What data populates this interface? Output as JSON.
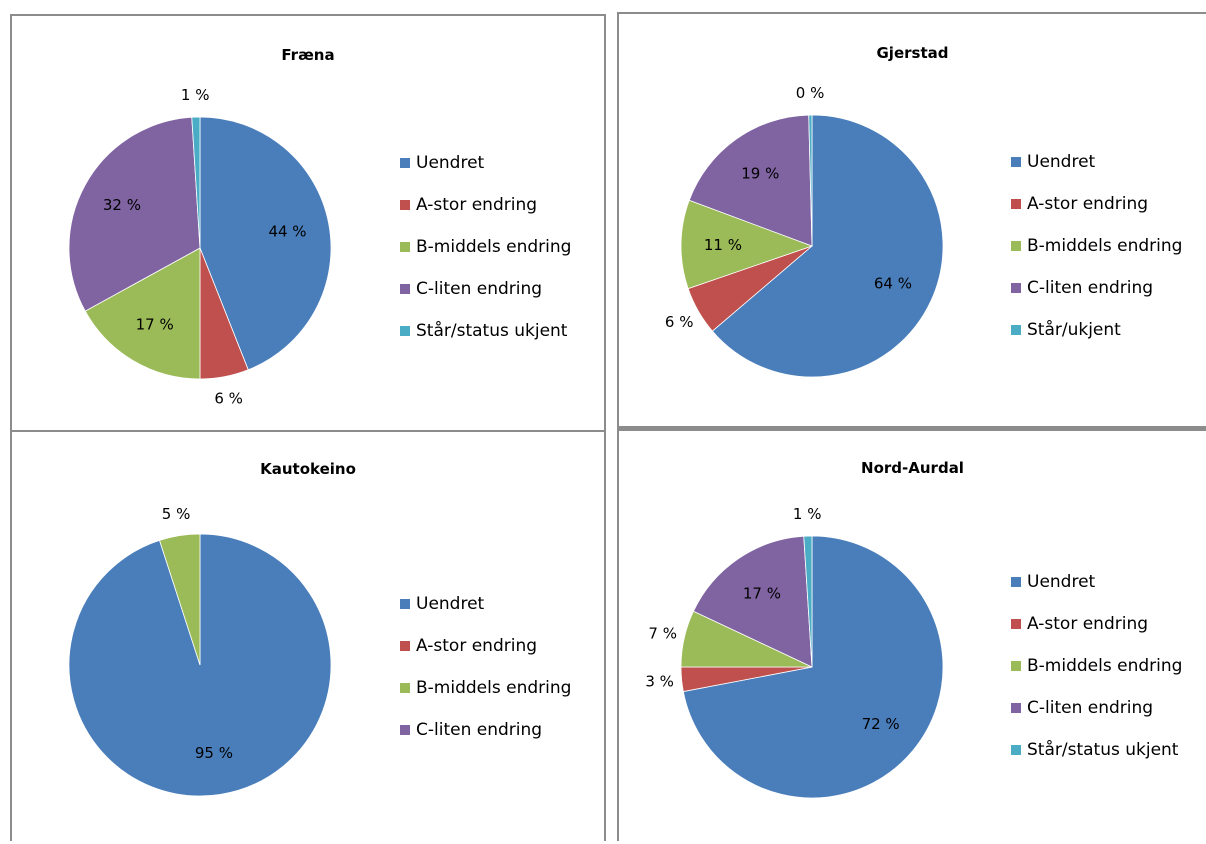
{
  "colors": {
    "Uendret": "#4a7ebb",
    "A-stor endring": "#c0504d",
    "B-middels endring": "#9bbb59",
    "C-liten endring": "#8064a2",
    "Status ukjent": "#4bacc6"
  },
  "chart_data": [
    {
      "type": "pie",
      "title": "Fræna",
      "categories": [
        "Uendret",
        "A-stor endring",
        "B-middels endring",
        "C-liten endring",
        "Står/status ukjent"
      ],
      "values": [
        44,
        6,
        17,
        32,
        1
      ],
      "labels": [
        "44 %",
        "6 %",
        "17 %",
        "32 %",
        "1 %"
      ],
      "legend_position": "right"
    },
    {
      "type": "pie",
      "title": "Gjerstad",
      "categories": [
        "Uendret",
        "A-stor endring",
        "B-middels endring",
        "C-liten endring",
        "Står/ukjent"
      ],
      "values": [
        64,
        6,
        11,
        19,
        0.4
      ],
      "labels": [
        "64 %",
        "6 %",
        "11 %",
        "19 %",
        "0 %"
      ],
      "legend_position": "right"
    },
    {
      "type": "pie",
      "title": "Kautokeino",
      "categories": [
        "Uendret",
        "A-stor endring",
        "B-middels endring",
        "C-liten endring"
      ],
      "values": [
        95,
        0,
        5,
        0
      ],
      "labels": [
        "95 %",
        "",
        "5 %",
        ""
      ],
      "legend_position": "right"
    },
    {
      "type": "pie",
      "title": "Nord-Aurdal",
      "categories": [
        "Uendret",
        "A-stor endring",
        "B-middels endring",
        "C-liten endring",
        "Står/status ukjent"
      ],
      "values": [
        72,
        3,
        7,
        17,
        1
      ],
      "labels": [
        "72 %",
        "3 %",
        "7 %",
        "17 %",
        "1 %"
      ],
      "legend_position": "right"
    }
  ]
}
